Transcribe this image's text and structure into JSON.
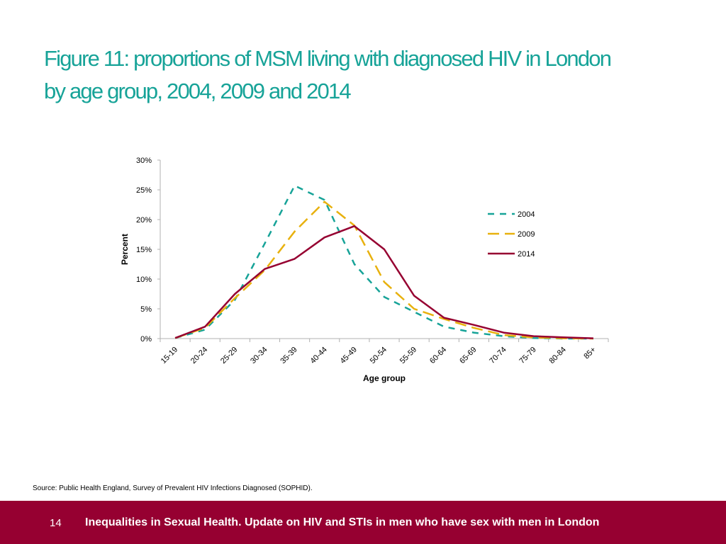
{
  "colors": {
    "title": "#17a398",
    "footer_bg": "#960031",
    "footer_text": "#ffffff",
    "axis": "#b0b0b0"
  },
  "slide": {
    "title_line1": "Figure 11: proportions of MSM living with diagnosed HIV in London",
    "title_line2": "by age group, 2004, 2009 and 2014",
    "source": "Source: Public Health England, Survey of Prevalent HIV Infections Diagnosed (SOPHID).",
    "page_number": "14",
    "footer_text": "Inequalities in Sexual Health. Update on HIV and STIs in men who have sex with men in London"
  },
  "chart_data": {
    "type": "line",
    "title": "",
    "xlabel": "Age group",
    "ylabel": "Percent",
    "categories": [
      "15-19",
      "20-24",
      "25-29",
      "30-34",
      "35-39",
      "40-44",
      "45-49",
      "50-54",
      "55-59",
      "60-64",
      "65-69",
      "70-74",
      "75-79",
      "80-84",
      "85+"
    ],
    "ylim": [
      0,
      30
    ],
    "yticks": [
      0,
      5,
      10,
      15,
      20,
      25,
      30
    ],
    "ytick_labels": [
      "0%",
      "5%",
      "10%",
      "15%",
      "20%",
      "25%",
      "30%"
    ],
    "legend_position": "right",
    "series": [
      {
        "name": "2004",
        "color": "#17a398",
        "dash": "dash",
        "values": [
          0.1,
          1.5,
          6.5,
          16.0,
          25.7,
          23.3,
          12.5,
          7.0,
          4.5,
          2.0,
          1.0,
          0.4,
          0.1,
          0.0,
          0.0
        ]
      },
      {
        "name": "2009",
        "color": "#e8b10e",
        "dash": "longdash",
        "values": [
          0.1,
          1.8,
          6.8,
          11.5,
          18.0,
          23.0,
          19.0,
          9.5,
          5.0,
          3.3,
          1.8,
          0.6,
          0.2,
          0.05,
          0.0
        ]
      },
      {
        "name": "2014",
        "color": "#960031",
        "dash": "solid",
        "values": [
          0.1,
          2.0,
          7.5,
          11.7,
          13.4,
          17.0,
          18.9,
          15.0,
          7.2,
          3.5,
          2.3,
          1.0,
          0.4,
          0.2,
          0.05
        ]
      }
    ]
  }
}
